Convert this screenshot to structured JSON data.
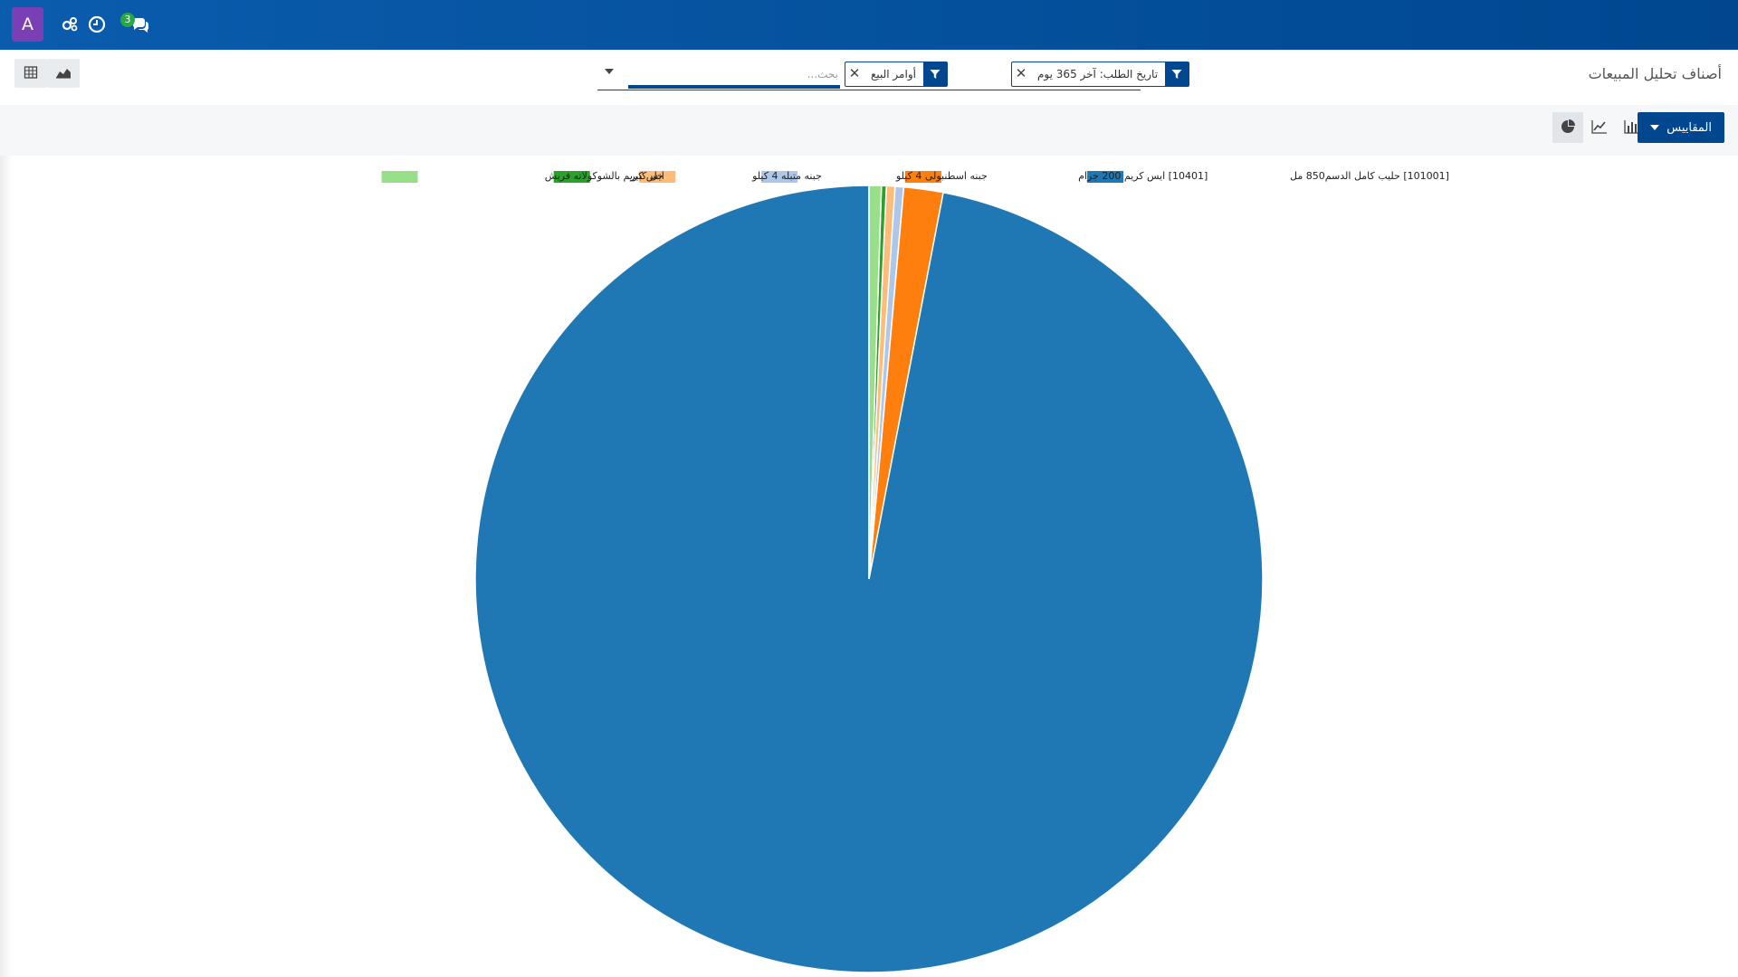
{
  "navbar": {
    "avatar_letter": "A",
    "icons": [
      "settings-icon",
      "clock-icon",
      "chat-icon"
    ],
    "chat_badge": "3"
  },
  "control": {
    "title": "أصناف تحليل المبيعات",
    "facets": [
      {
        "label": "أوامر البيع"
      },
      {
        "label": "تاريخ الطلب: آخر 365 يوم"
      }
    ],
    "search_placeholder": "بحث..."
  },
  "toolbar": {
    "measures_label": "المقاييس"
  },
  "colors": {
    "navbar": "#00478f",
    "primary": "#00478f",
    "avatar": "#7b3fb5",
    "badge": "#28a745"
  },
  "chart_data": {
    "type": "pie",
    "legend_position": "top",
    "series": [
      {
        "name": "[101001] حليب كامل الدسم850 مل",
        "value": 96.4,
        "color": "#1f77b4"
      },
      {
        "name": "[10401] ايس كريم 200 جرام",
        "value": 1.6,
        "color": "#ff7f0e"
      },
      {
        "name": "جبنه اسطنبولى 4 كيلو",
        "value": 0.35,
        "color": "#aec7e8"
      },
      {
        "name": "جبنه متبله 4 كيلو",
        "value": 0.35,
        "color": "#ffbb78"
      },
      {
        "name": "خل كبير",
        "value": 0.2,
        "color": "#2ca02c"
      },
      {
        "name": "ايس كريم بالشوكولاته فريش",
        "value": 0.5,
        "color": "#98df8a"
      }
    ]
  }
}
